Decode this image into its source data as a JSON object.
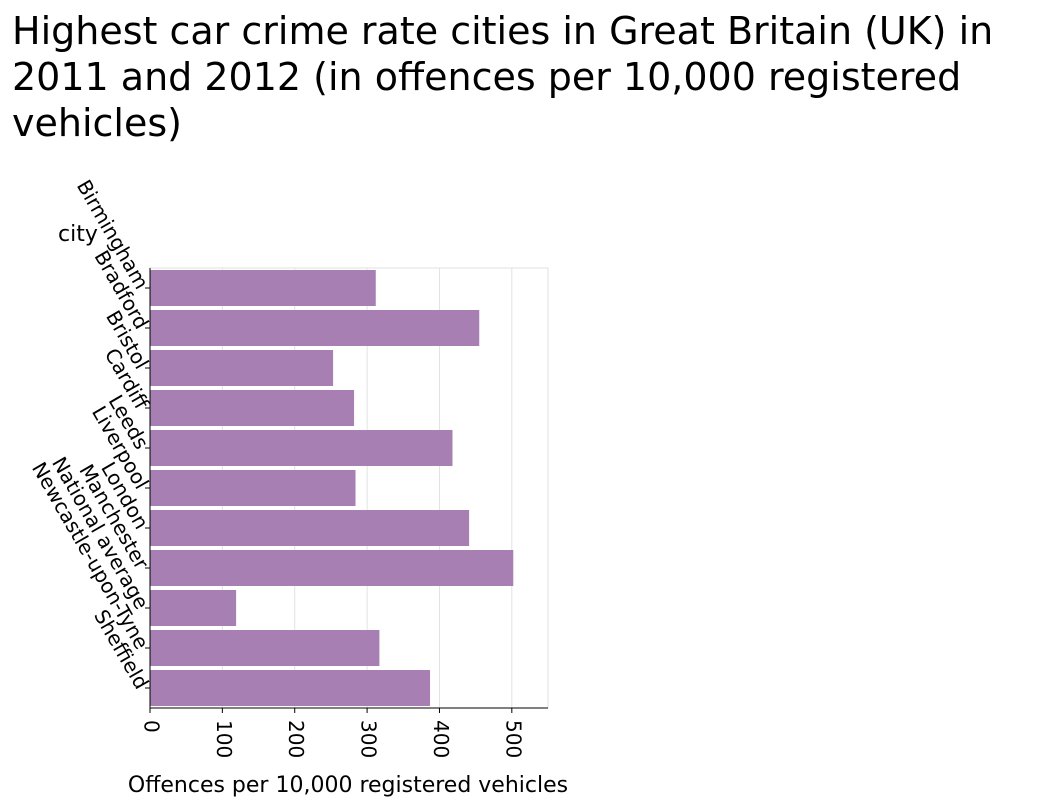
{
  "chart_data": {
    "type": "bar",
    "orientation": "horizontal",
    "title": "Highest car crime rate cities in Great Britain (UK) in 2011 and 2012 (in offences per 10,000 registered vehicles)",
    "xlabel": "Offences per 10,000 registered vehicles",
    "ylabel": "city",
    "categories": [
      "Birmingham",
      "Bradford",
      "Bristol",
      "Cardiff",
      "Leeds",
      "Liverpool",
      "London",
      "Manchester",
      "National average",
      "Newcastle-upon-Tyne",
      "Sheffield"
    ],
    "values": [
      312,
      455,
      253,
      282,
      418,
      284,
      441,
      502,
      119,
      317,
      387
    ],
    "xlim": [
      0,
      550
    ],
    "xticks": [
      "0",
      "100",
      "200",
      "300",
      "400",
      "500"
    ],
    "grid": true,
    "bar_color": "#a87fb3"
  }
}
